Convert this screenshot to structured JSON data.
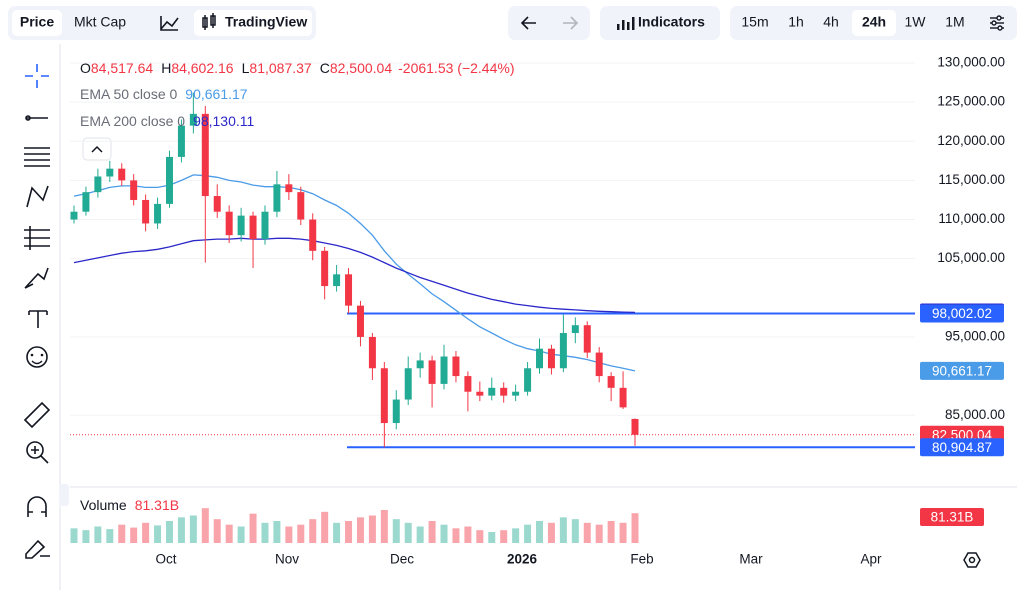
{
  "toolbar": {
    "price_tabs": [
      "Price",
      "Mkt Cap"
    ],
    "chart_type": "TradingView",
    "indicators": "Indicators",
    "intervals": [
      "15m",
      "1h",
      "4h",
      "24h",
      "1W",
      "1M"
    ],
    "active_interval": "24h",
    "active_tab": "Price"
  },
  "chart_data": {
    "type": "candlestick",
    "ohlc_keys": [
      "O",
      "H",
      "L",
      "C"
    ],
    "ohlc_labels": [
      "84,517.64",
      "84,602.16",
      "81,087.37",
      "82,500.04"
    ],
    "change_label": "-2061.53 (−2.44%)",
    "up_color": "#22ab94",
    "down_color": "#f23645",
    "candles": [
      [
        110000,
        111800,
        109500,
        111000
      ],
      [
        111000,
        114200,
        110500,
        113500
      ],
      [
        113500,
        116500,
        112800,
        115500
      ],
      [
        115500,
        117500,
        114800,
        116500
      ],
      [
        116500,
        117200,
        114300,
        115000
      ],
      [
        115000,
        115800,
        111800,
        112500
      ],
      [
        112500,
        113200,
        108500,
        109500
      ],
      [
        109500,
        112800,
        108800,
        112000
      ],
      [
        112000,
        118800,
        111500,
        118000
      ],
      [
        118000,
        122800,
        117300,
        122000
      ],
      [
        122000,
        126200,
        121000,
        123500
      ],
      [
        123500,
        124500,
        104500,
        113000
      ],
      [
        113000,
        114500,
        110200,
        111000
      ],
      [
        111000,
        111800,
        107000,
        108000
      ],
      [
        108000,
        111500,
        107200,
        110500
      ],
      [
        110500,
        111000,
        103800,
        107500
      ],
      [
        107500,
        111800,
        106800,
        111000
      ],
      [
        111000,
        116200,
        110300,
        114500
      ],
      [
        114500,
        115800,
        112500,
        113500
      ],
      [
        113500,
        114200,
        109300,
        110000
      ],
      [
        110000,
        110800,
        104800,
        106000
      ],
      [
        106000,
        106500,
        99800,
        101500
      ],
      [
        101500,
        104200,
        100800,
        103000
      ],
      [
        103000,
        103800,
        98000,
        99000
      ],
      [
        99000,
        99600,
        93800,
        95000
      ],
      [
        95000,
        95500,
        89500,
        91000
      ],
      [
        91000,
        91800,
        80900,
        84000
      ],
      [
        84000,
        88200,
        83200,
        87000
      ],
      [
        87000,
        92500,
        86300,
        91000
      ],
      [
        91000,
        93000,
        89800,
        92000
      ],
      [
        92000,
        92600,
        86000,
        89000
      ],
      [
        89000,
        94000,
        88300,
        92500
      ],
      [
        92500,
        93200,
        89200,
        90000
      ],
      [
        90000,
        90600,
        85500,
        88000
      ],
      [
        88000,
        89300,
        86800,
        87500
      ],
      [
        87500,
        89800,
        86900,
        88500
      ],
      [
        88500,
        89200,
        86600,
        87500
      ],
      [
        87500,
        88900,
        86800,
        88000
      ],
      [
        88000,
        91800,
        87500,
        91000
      ],
      [
        91000,
        94800,
        90300,
        93500
      ],
      [
        93500,
        94000,
        90200,
        91000
      ],
      [
        91000,
        97900,
        90500,
        95500
      ],
      [
        95500,
        97500,
        94200,
        96500
      ],
      [
        96500,
        97000,
        92300,
        93000
      ],
      [
        93000,
        93700,
        89200,
        90000
      ],
      [
        90000,
        90500,
        86800,
        88500
      ],
      [
        88500,
        90600,
        85800,
        86000
      ],
      [
        84517.64,
        84602.16,
        81087.37,
        82500.04
      ]
    ],
    "series": [
      {
        "name": "EMA 50 close 0",
        "color": "#4a9be8",
        "value_label": "90,661.17",
        "values": [
          113000,
          113300,
          113700,
          114100,
          114300,
          114300,
          114100,
          114100,
          114400,
          115000,
          115700,
          115600,
          115400,
          115000,
          114800,
          114400,
          114200,
          114200,
          114100,
          113800,
          113300,
          112500,
          111800,
          110800,
          109500,
          108000,
          106000,
          104300,
          103000,
          101800,
          100500,
          99500,
          98400,
          97300,
          96300,
          95500,
          94700,
          94000,
          93500,
          93200,
          92800,
          92600,
          92400,
          92100,
          91700,
          91300,
          91000,
          90661.17
        ]
      },
      {
        "name": "EMA 200 close 0",
        "color": "#2b28c9",
        "value_label": "98,130.11",
        "values": [
          104500,
          104800,
          105100,
          105400,
          105700,
          105900,
          106000,
          106200,
          106500,
          106900,
          107300,
          107400,
          107500,
          107500,
          107600,
          107500,
          107500,
          107600,
          107600,
          107500,
          107300,
          107000,
          106700,
          106300,
          105800,
          105200,
          104500,
          103800,
          103200,
          102600,
          102100,
          101600,
          101100,
          100600,
          100200,
          99800,
          99500,
          99200,
          99000,
          98800,
          98650,
          98550,
          98450,
          98350,
          98280,
          98220,
          98170,
          98130.11
        ]
      }
    ],
    "h_lines": [
      {
        "value": 98002.02,
        "label": "98,002.02"
      },
      {
        "value": 80904.87,
        "label": "80,904.87"
      }
    ],
    "h_line_color": "#2962ff",
    "volume": {
      "name": "Volume",
      "value_label": "81.31B",
      "vlim": [
        0,
        150
      ],
      "values": [
        40,
        35,
        45,
        38,
        50,
        42,
        55,
        48,
        60,
        70,
        75,
        95,
        65,
        50,
        45,
        80,
        55,
        60,
        45,
        50,
        65,
        85,
        55,
        60,
        70,
        75,
        90,
        65,
        55,
        45,
        60,
        50,
        40,
        45,
        35,
        30,
        35,
        40,
        50,
        60,
        55,
        70,
        65,
        55,
        50,
        60,
        55,
        81.31
      ]
    },
    "ylim": [
      78000,
      132300
    ],
    "yticks": [
      {
        "value": 130000,
        "label": "130,000.00"
      },
      {
        "value": 125000,
        "label": "125,000.00"
      },
      {
        "value": 120000,
        "label": "120,000.00"
      },
      {
        "value": 115000,
        "label": "115,000.00"
      },
      {
        "value": 110000,
        "label": "110,000.00"
      },
      {
        "value": 105000,
        "label": "105,000.00"
      },
      {
        "value": 95000,
        "label": "95,000.00"
      },
      {
        "value": 85000,
        "label": "85,000.00"
      }
    ],
    "xticks": [
      "Oct",
      "Nov",
      "Dec",
      "2026",
      "Feb",
      "Mar",
      "Apr"
    ],
    "grid": true
  }
}
